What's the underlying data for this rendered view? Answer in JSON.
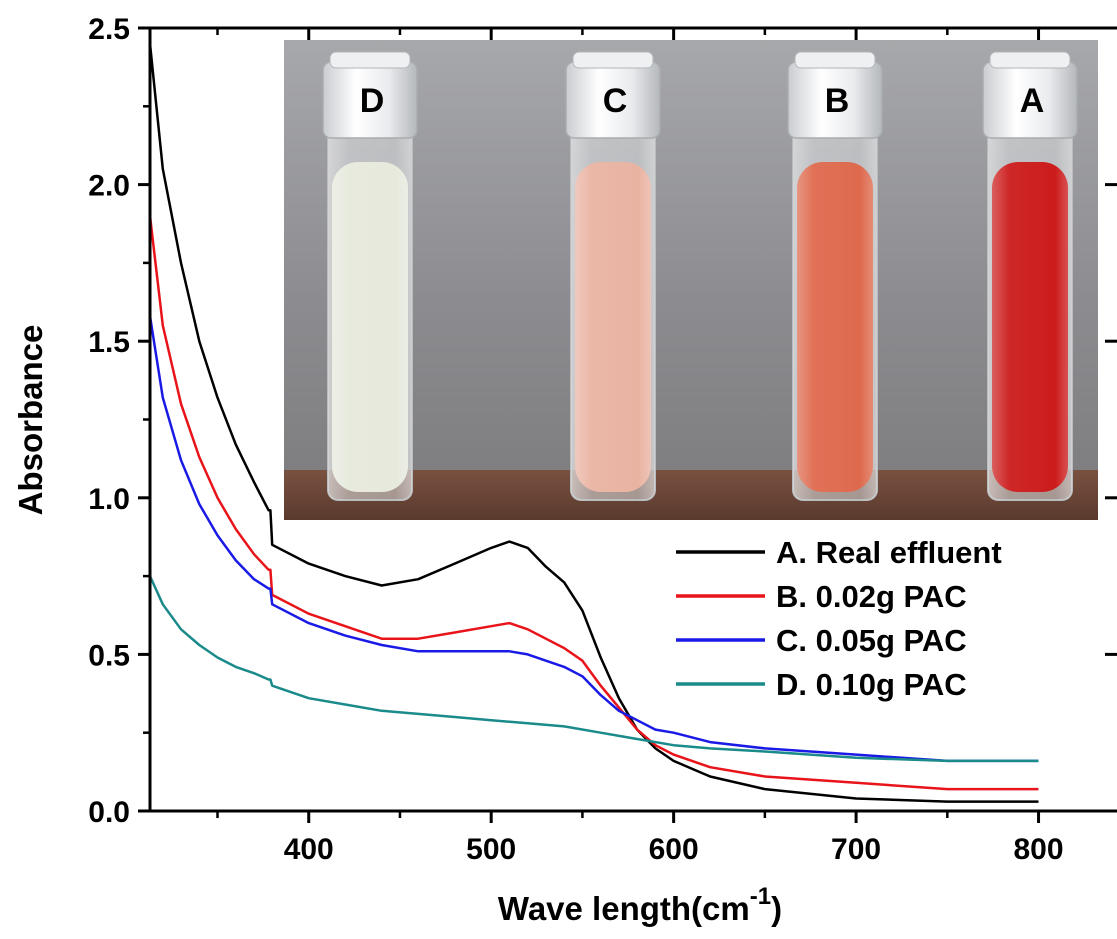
{
  "chart_data": {
    "type": "line",
    "title": "",
    "xlabel": "Wave length(cm",
    "xlabel_superscript": "-1",
    "xlabel_suffix": ")",
    "ylabel": "Absorbance",
    "xlim": [
      313,
      843
    ],
    "ylim": [
      0,
      2.5
    ],
    "xticks": [
      400,
      500,
      600,
      700,
      800
    ],
    "xtick_labels": [
      "400",
      "500",
      "600",
      "700",
      "800"
    ],
    "yticks": [
      0.0,
      0.5,
      1.0,
      1.5,
      2.0,
      2.5
    ],
    "ytick_labels": [
      "0.0",
      "0.5",
      "1.0",
      "1.5",
      "2.0",
      "2.5"
    ],
    "grid": false,
    "legend_position": "center-right",
    "series": [
      {
        "name": "A. Real effluent",
        "color": "#000000",
        "x": [
          313,
          320,
          330,
          340,
          350,
          360,
          370,
          378,
          379,
          380,
          400,
          420,
          440,
          460,
          480,
          500,
          510,
          520,
          530,
          540,
          550,
          560,
          570,
          580,
          590,
          600,
          620,
          650,
          700,
          750,
          800
        ],
        "y": [
          2.45,
          2.05,
          1.75,
          1.5,
          1.32,
          1.17,
          1.05,
          0.96,
          0.96,
          0.85,
          0.79,
          0.75,
          0.72,
          0.74,
          0.79,
          0.84,
          0.86,
          0.84,
          0.78,
          0.73,
          0.64,
          0.49,
          0.36,
          0.26,
          0.2,
          0.16,
          0.11,
          0.07,
          0.04,
          0.03,
          0.03
        ]
      },
      {
        "name": "B. 0.02g PAC",
        "color": "#e8141a",
        "x": [
          313,
          320,
          330,
          340,
          350,
          360,
          370,
          378,
          379,
          380,
          400,
          420,
          440,
          460,
          480,
          500,
          510,
          520,
          530,
          540,
          550,
          560,
          570,
          580,
          590,
          600,
          620,
          650,
          700,
          750,
          800
        ],
        "y": [
          1.9,
          1.55,
          1.3,
          1.13,
          1.0,
          0.9,
          0.82,
          0.77,
          0.77,
          0.69,
          0.63,
          0.59,
          0.55,
          0.55,
          0.57,
          0.59,
          0.6,
          0.58,
          0.55,
          0.52,
          0.48,
          0.4,
          0.33,
          0.26,
          0.21,
          0.18,
          0.14,
          0.11,
          0.09,
          0.07,
          0.07
        ]
      },
      {
        "name": "C. 0.05g PAC",
        "color": "#1a1ae6",
        "x": [
          313,
          320,
          330,
          340,
          350,
          360,
          370,
          378,
          379,
          380,
          400,
          420,
          440,
          460,
          480,
          500,
          510,
          520,
          530,
          540,
          550,
          560,
          570,
          580,
          590,
          600,
          620,
          650,
          700,
          750,
          800
        ],
        "y": [
          1.58,
          1.32,
          1.12,
          0.98,
          0.88,
          0.8,
          0.74,
          0.71,
          0.71,
          0.66,
          0.6,
          0.56,
          0.53,
          0.51,
          0.51,
          0.51,
          0.51,
          0.5,
          0.48,
          0.46,
          0.43,
          0.37,
          0.32,
          0.29,
          0.26,
          0.25,
          0.22,
          0.2,
          0.18,
          0.16,
          0.16
        ]
      },
      {
        "name": "D. 0.10g PAC",
        "color": "#1a8a8a",
        "x": [
          313,
          320,
          330,
          340,
          350,
          360,
          370,
          378,
          379,
          380,
          400,
          420,
          440,
          460,
          480,
          500,
          520,
          540,
          560,
          580,
          600,
          620,
          650,
          700,
          750,
          800
        ],
        "y": [
          0.75,
          0.66,
          0.58,
          0.53,
          0.49,
          0.46,
          0.44,
          0.42,
          0.42,
          0.4,
          0.36,
          0.34,
          0.32,
          0.31,
          0.3,
          0.29,
          0.28,
          0.27,
          0.25,
          0.23,
          0.21,
          0.2,
          0.19,
          0.17,
          0.16,
          0.16
        ]
      }
    ]
  },
  "inset": {
    "tubes": [
      {
        "label": "D",
        "liquid_color": "#e6e9dc"
      },
      {
        "label": "C",
        "liquid_color": "#e9b3a2"
      },
      {
        "label": "B",
        "liquid_color": "#de6a4e"
      },
      {
        "label": "A",
        "liquid_color": "#cc1c1c"
      }
    ]
  }
}
